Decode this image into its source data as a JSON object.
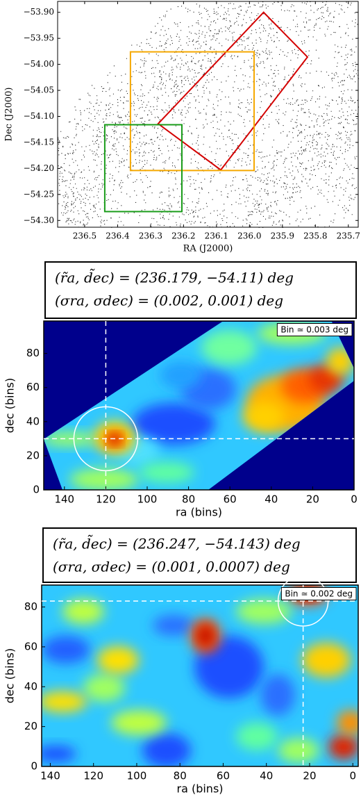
{
  "chart_data": [
    {
      "type": "scatter",
      "xlabel": "RA (J2000)",
      "ylabel": "Dec (J2000)",
      "xlim": [
        236.582,
        235.67
      ],
      "ylim": [
        -54.313,
        -53.879
      ],
      "xticks": [
        236.5,
        236.4,
        236.3,
        236.2,
        236.1,
        {
          "value": 236.0,
          "label": "236.0"
        },
        235.9,
        235.8,
        235.7
      ],
      "yticks": [
        {
          "value": -53.9,
          "label": "−53.90"
        },
        {
          "value": -53.95,
          "label": "−53.95"
        },
        {
          "value": -54.0,
          "label": "−54.00"
        },
        {
          "value": -54.05,
          "label": "−54.05"
        },
        {
          "value": -54.1,
          "label": "−54.10"
        },
        {
          "value": -54.15,
          "label": "−54.15"
        },
        {
          "value": -54.2,
          "label": "−54.20"
        },
        {
          "value": -54.25,
          "label": "−54.25"
        },
        {
          "value": -54.3,
          "label": "−54.30"
        }
      ],
      "regions": [
        {
          "color": "#d40000",
          "ra": [
            235.957,
            235.824,
            236.087,
            236.277
          ],
          "dec": [
            -53.9,
            -53.986,
            -54.203,
            -54.114
          ]
        },
        {
          "color": "#f5a800",
          "ra": [
            236.361,
            235.986,
            235.986,
            236.361
          ],
          "dec": [
            -53.976,
            -53.976,
            -54.204,
            -54.204
          ]
        },
        {
          "color": "#1a9c1a",
          "ra": [
            236.439,
            236.205,
            236.205,
            236.439
          ],
          "dec": [
            -54.116,
            -54.116,
            -54.283,
            -54.283
          ]
        }
      ]
    },
    {
      "type": "heatmap",
      "annotation": [
        "(r̃a, d̃ec) = (236.179, −54.11) deg",
        "(σra, σdec) = (0.002, 0.001) deg"
      ],
      "bin_label": "Bin ≃ 0.003 deg",
      "xlabel": "ra (bins)",
      "ylabel": "dec (bins)",
      "xlim": [
        150,
        0
      ],
      "ylim": [
        0,
        99
      ],
      "xticks": [
        140,
        120,
        100,
        80,
        60,
        40,
        20,
        0
      ],
      "yticks": [
        0,
        20,
        40,
        60,
        80
      ],
      "peak": {
        "x": 120,
        "y": 30
      }
    },
    {
      "type": "heatmap",
      "annotation": [
        "(r̃a, d̃ec) = (236.247, −54.143) deg",
        "(σra, σdec) = (0.001, 0.0007) deg"
      ],
      "bin_label": "Bin ≃ 0.002 deg",
      "xlabel": "ra (bins)",
      "ylabel": "dec (bins)",
      "xlim": [
        144,
        -2.5
      ],
      "ylim": [
        0,
        91
      ],
      "xticks": [
        140,
        120,
        100,
        80,
        60,
        40,
        20,
        0
      ],
      "yticks": [
        0,
        20,
        40,
        60,
        80
      ],
      "peak": {
        "x": 23,
        "y": 83
      }
    }
  ]
}
